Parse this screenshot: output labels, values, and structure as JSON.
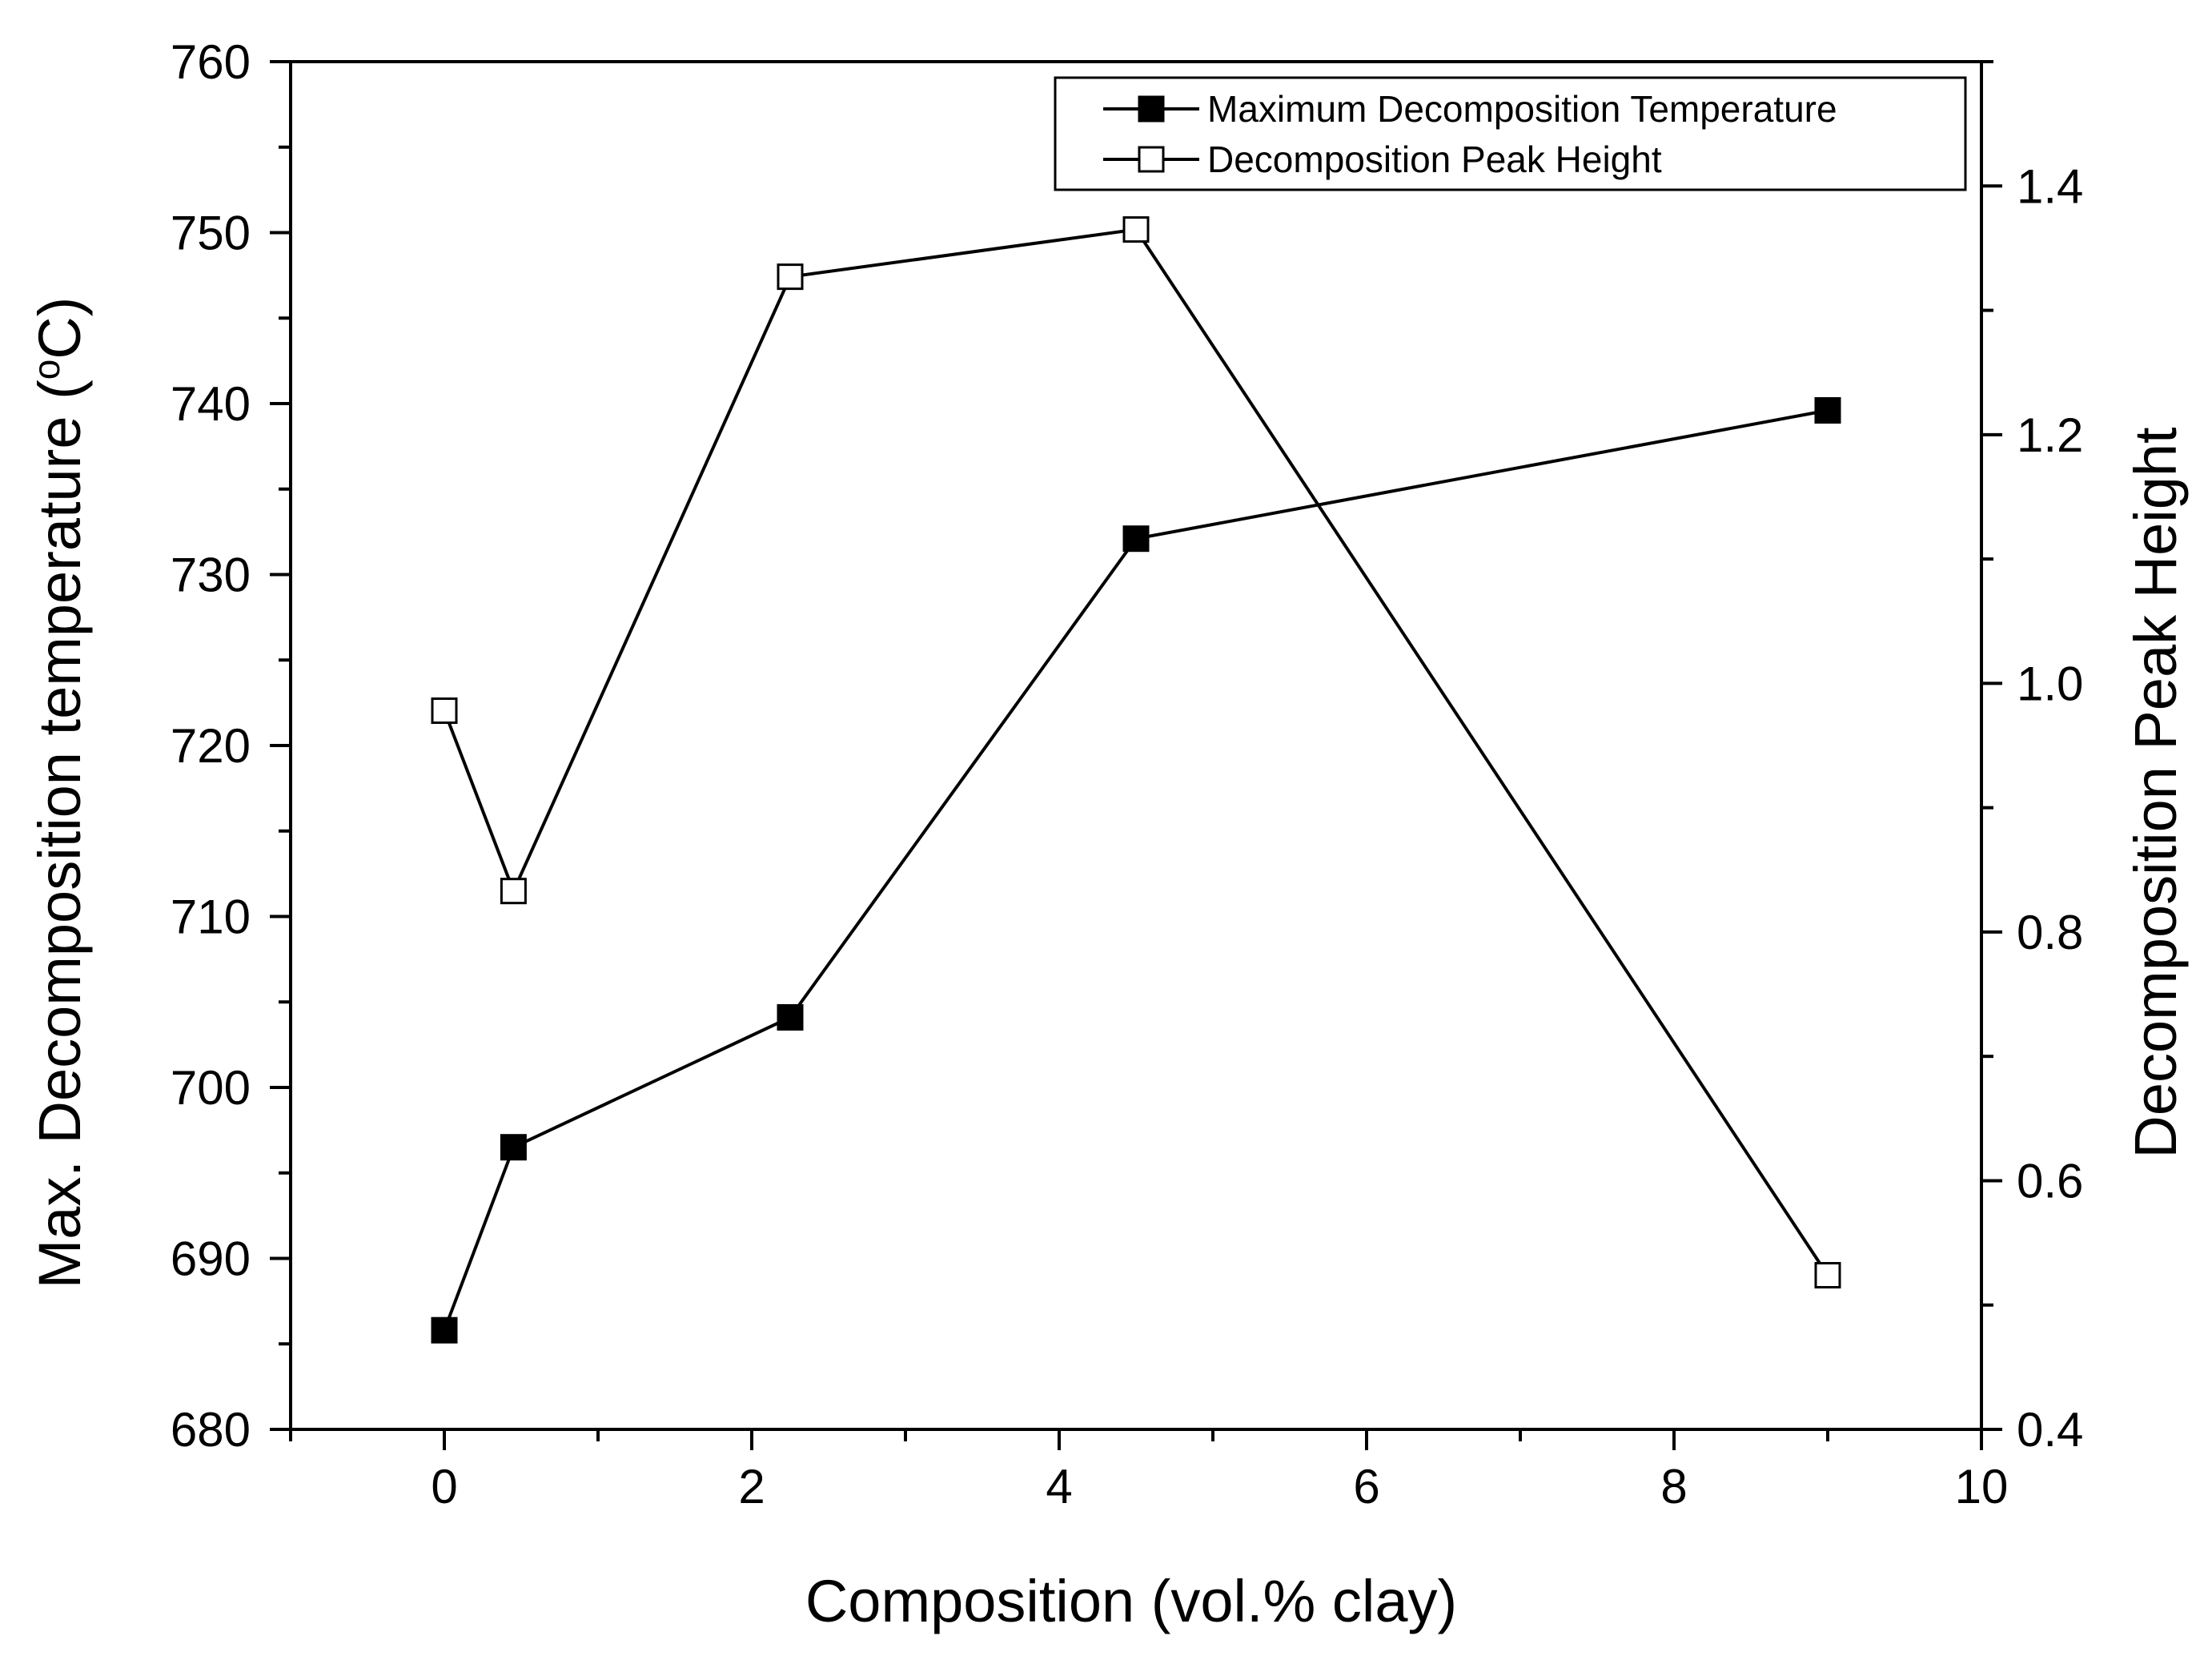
{
  "chart_data": {
    "type": "line",
    "xlabel": "Composition (vol.% clay)",
    "ylabel_left": "Max. Decomposition temperature (",
    "ylabel_left_unit_sup": "o",
    "ylabel_left_unit": "C)",
    "ylabel_right": "Decomposition Peak Height",
    "xlim": [
      -1,
      10
    ],
    "ylim_left": [
      680,
      760
    ],
    "ylim_right": [
      0.4,
      1.5
    ],
    "x_ticks": [
      "0",
      "2",
      "4",
      "6",
      "8",
      "10"
    ],
    "y_left_ticks": [
      "680",
      "690",
      "700",
      "710",
      "720",
      "730",
      "740",
      "750",
      "760"
    ],
    "y_right_ticks": [
      "0.4",
      "0.6",
      "0.8",
      "1.0",
      "1.2",
      "1.4"
    ],
    "legend_position": "top-right",
    "series": [
      {
        "name": "Maximum Decomposition Temperature",
        "axis": "left",
        "marker": "filled-square",
        "x": [
          0,
          0.45,
          2.25,
          4.5,
          9.0
        ],
        "y": [
          685.8,
          696.5,
          704.1,
          732.1,
          739.6
        ]
      },
      {
        "name": "Decomposition Peak Height",
        "axis": "right",
        "marker": "open-square",
        "x": [
          0,
          0.45,
          2.25,
          4.5,
          9.0
        ],
        "y": [
          0.978,
          0.833,
          1.327,
          1.365,
          0.524
        ]
      }
    ]
  }
}
